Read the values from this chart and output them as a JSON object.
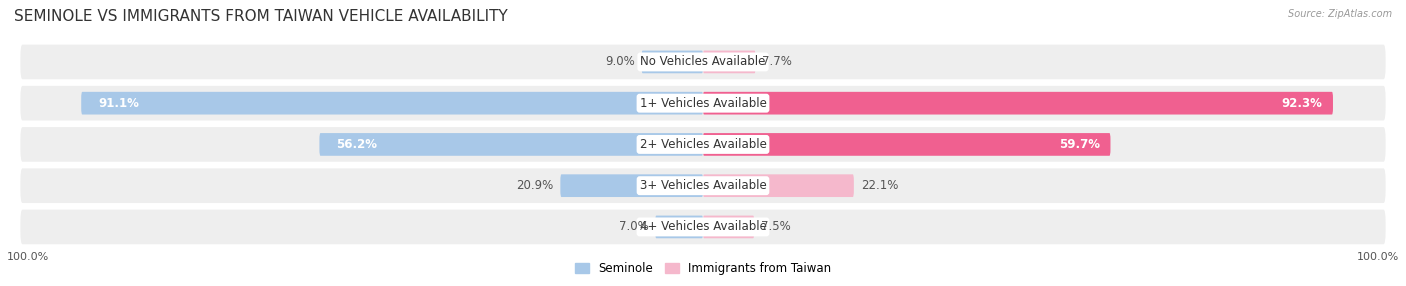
{
  "title": "SEMINOLE VS IMMIGRANTS FROM TAIWAN VEHICLE AVAILABILITY",
  "source": "Source: ZipAtlas.com",
  "categories": [
    "No Vehicles Available",
    "1+ Vehicles Available",
    "2+ Vehicles Available",
    "3+ Vehicles Available",
    "4+ Vehicles Available"
  ],
  "seminole_values": [
    9.0,
    91.1,
    56.2,
    20.9,
    7.0
  ],
  "taiwan_values": [
    7.7,
    92.3,
    59.7,
    22.1,
    7.5
  ],
  "max_value": 100.0,
  "seminole_color": "#a8c8e8",
  "taiwan_color_light": "#f5b8cc",
  "taiwan_color_dark": "#f06090",
  "seminole_label": "Seminole",
  "taiwan_label": "Immigrants from Taiwan",
  "bg_color": "#ffffff",
  "row_bg_color": "#eeeeee",
  "title_fontsize": 11,
  "label_fontsize": 8.5,
  "value_fontsize": 8.5,
  "tick_fontsize": 8
}
